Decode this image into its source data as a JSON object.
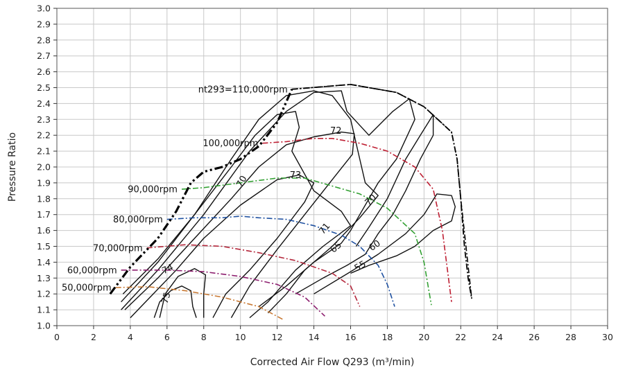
{
  "chart_data": {
    "type": "line",
    "title": "",
    "xlabel": "Corrected Air Flow Q293  (m³/min)",
    "ylabel": "Pressure Ratio",
    "xlim": [
      0,
      30
    ],
    "ylim": [
      1.0,
      3.0
    ],
    "x_ticks": [
      0,
      2,
      4,
      6,
      8,
      10,
      12,
      14,
      16,
      18,
      20,
      22,
      24,
      26,
      28,
      30
    ],
    "x_tick_labels": [
      "0",
      "2",
      "4",
      "6",
      "8",
      "10",
      "12",
      "14",
      "16",
      "18",
      "20",
      "22",
      "24",
      "26",
      "28",
      "30"
    ],
    "y_ticks": [
      1.0,
      1.1,
      1.2,
      1.3,
      1.4,
      1.5,
      1.6,
      1.7,
      1.8,
      1.9,
      2.0,
      2.1,
      2.2,
      2.3,
      2.4,
      2.5,
      2.6,
      2.7,
      2.8,
      2.9,
      3.0
    ],
    "y_tick_labels": [
      "1.0",
      "1.1",
      "1.2",
      "1.3",
      "1.4",
      "1.5",
      "1.6",
      "1.7",
      "1.8",
      "1.9",
      "2.0",
      "2.1",
      "2.2",
      "2.3",
      "2.4",
      "2.5",
      "2.6",
      "2.7",
      "2.8",
      "2.9",
      "3.0"
    ],
    "grid": true,
    "surge_line": {
      "color": "#000000",
      "points": [
        [
          2.9,
          1.2
        ],
        [
          4.0,
          1.37
        ],
        [
          5.5,
          1.55
        ],
        [
          6.5,
          1.72
        ],
        [
          7.3,
          1.9
        ],
        [
          8.0,
          1.97
        ],
        [
          9.0,
          2.0
        ],
        [
          10.0,
          2.05
        ],
        [
          11.0,
          2.13
        ],
        [
          12.0,
          2.28
        ],
        [
          12.8,
          2.49
        ]
      ]
    },
    "choke_line": {
      "color": "#000000",
      "points": [
        [
          12.8,
          2.49
        ],
        [
          16.0,
          2.52
        ],
        [
          17.0,
          2.5
        ],
        [
          18.5,
          2.47
        ],
        [
          20.0,
          2.38
        ],
        [
          21.5,
          2.22
        ],
        [
          21.8,
          2.05
        ],
        [
          22.0,
          1.8
        ],
        [
          22.2,
          1.5
        ],
        [
          22.4,
          1.3
        ],
        [
          22.6,
          1.17
        ]
      ]
    },
    "speed_lines": [
      {
        "name": "50,000rpm",
        "color": "#c87832",
        "points": [
          [
            3.2,
            1.24
          ],
          [
            5.0,
            1.245
          ],
          [
            7.0,
            1.22
          ],
          [
            9.0,
            1.18
          ],
          [
            11.0,
            1.12
          ],
          [
            12.3,
            1.04
          ]
        ]
      },
      {
        "name": "60,000rpm",
        "color": "#8c1e6e",
        "points": [
          [
            3.5,
            1.35
          ],
          [
            6.0,
            1.35
          ],
          [
            8.0,
            1.34
          ],
          [
            10.0,
            1.31
          ],
          [
            12.0,
            1.26
          ],
          [
            13.5,
            1.18
          ],
          [
            14.6,
            1.06
          ]
        ]
      },
      {
        "name": "70,000rpm",
        "color": "#b4283c",
        "points": [
          [
            4.9,
            1.49
          ],
          [
            7.0,
            1.51
          ],
          [
            9.0,
            1.5
          ],
          [
            11.0,
            1.46
          ],
          [
            13.0,
            1.41
          ],
          [
            15.0,
            1.33
          ],
          [
            16.0,
            1.25
          ],
          [
            16.5,
            1.12
          ]
        ]
      },
      {
        "name": "80,000rpm",
        "color": "#1e50a0",
        "points": [
          [
            6.0,
            1.67
          ],
          [
            7.5,
            1.68
          ],
          [
            9.0,
            1.68
          ],
          [
            10.0,
            1.69
          ],
          [
            11.0,
            1.68
          ],
          [
            12.5,
            1.67
          ],
          [
            14.0,
            1.63
          ],
          [
            15.5,
            1.57
          ],
          [
            16.5,
            1.5
          ],
          [
            17.5,
            1.38
          ],
          [
            18.0,
            1.26
          ],
          [
            18.4,
            1.12
          ]
        ]
      },
      {
        "name": "90,000rpm",
        "color": "#32a032",
        "points": [
          [
            6.8,
            1.86
          ],
          [
            8.0,
            1.87
          ],
          [
            10.0,
            1.9
          ],
          [
            12.0,
            1.93
          ],
          [
            13.5,
            1.93
          ],
          [
            15.0,
            1.88
          ],
          [
            16.5,
            1.83
          ],
          [
            18.0,
            1.74
          ],
          [
            19.5,
            1.58
          ],
          [
            20.0,
            1.4
          ],
          [
            20.4,
            1.13
          ]
        ]
      },
      {
        "name": "100,000rpm",
        "color": "#be1e32",
        "points": [
          [
            11.2,
            2.15
          ],
          [
            12.5,
            2.16
          ],
          [
            14.0,
            2.18
          ],
          [
            15.0,
            2.18
          ],
          [
            16.5,
            2.15
          ],
          [
            18.0,
            2.1
          ],
          [
            19.5,
            2.0
          ],
          [
            20.5,
            1.86
          ],
          [
            21.0,
            1.6
          ],
          [
            21.5,
            1.15
          ]
        ]
      },
      {
        "name": "nt293=110,000rpm",
        "color": "#000000",
        "points": [
          [
            12.8,
            2.49
          ],
          [
            16.0,
            2.52
          ],
          [
            18.5,
            2.47
          ],
          [
            20.0,
            2.38
          ],
          [
            21.5,
            2.22
          ],
          [
            21.8,
            2.05
          ],
          [
            22.0,
            1.8
          ],
          [
            22.6,
            1.17
          ]
        ]
      }
    ],
    "efficiency_contours": [
      {
        "label": "75",
        "points": [
          [
            5.3,
            1.05
          ],
          [
            5.6,
            1.15
          ],
          [
            6.2,
            1.22
          ],
          [
            6.8,
            1.25
          ],
          [
            7.3,
            1.22
          ],
          [
            7.4,
            1.12
          ],
          [
            7.6,
            1.05
          ]
        ]
      },
      {
        "label": "74",
        "points": [
          [
            5.6,
            1.05
          ],
          [
            5.9,
            1.2
          ],
          [
            6.6,
            1.31
          ],
          [
            7.5,
            1.36
          ],
          [
            8.1,
            1.32
          ],
          [
            8.0,
            1.2
          ],
          [
            8.0,
            1.05
          ]
        ]
      },
      {
        "label": "73",
        "points": [
          [
            4.0,
            1.05
          ],
          [
            5.0,
            1.17
          ],
          [
            6.5,
            1.35
          ],
          [
            8.0,
            1.55
          ],
          [
            10.0,
            1.76
          ],
          [
            12.0,
            1.92
          ],
          [
            13.2,
            1.95
          ],
          [
            14.0,
            1.9
          ],
          [
            13.5,
            1.78
          ],
          [
            12.0,
            1.55
          ],
          [
            10.5,
            1.35
          ],
          [
            9.2,
            1.2
          ],
          [
            8.5,
            1.05
          ]
        ]
      },
      {
        "label": "72",
        "points": [
          [
            3.7,
            1.1
          ],
          [
            5.5,
            1.3
          ],
          [
            7.5,
            1.55
          ],
          [
            9.5,
            1.8
          ],
          [
            11.0,
            2.0
          ],
          [
            12.5,
            2.14
          ],
          [
            14.0,
            2.19
          ],
          [
            15.5,
            2.22
          ],
          [
            16.2,
            2.21
          ],
          [
            16.1,
            2.08
          ],
          [
            15.0,
            1.92
          ],
          [
            13.5,
            1.7
          ],
          [
            12.0,
            1.48
          ],
          [
            10.5,
            1.25
          ],
          [
            9.5,
            1.05
          ]
        ]
      },
      {
        "label": "71",
        "points": [
          [
            3.6,
            1.2
          ],
          [
            5.5,
            1.42
          ],
          [
            7.5,
            1.7
          ],
          [
            9.5,
            2.0
          ],
          [
            10.8,
            2.2
          ],
          [
            12.0,
            2.33
          ],
          [
            13.0,
            2.35
          ],
          [
            13.2,
            2.25
          ],
          [
            12.8,
            2.1
          ],
          [
            14.0,
            1.85
          ],
          [
            15.5,
            1.72
          ],
          [
            16.0,
            1.63
          ],
          [
            14.5,
            1.5
          ],
          [
            13.0,
            1.35
          ],
          [
            11.5,
            1.15
          ],
          [
            10.5,
            1.05
          ]
        ]
      },
      {
        "label": "70",
        "points": [
          [
            3.5,
            1.15
          ],
          [
            5.5,
            1.4
          ],
          [
            7.5,
            1.7
          ],
          [
            9.5,
            2.05
          ],
          [
            11.0,
            2.3
          ],
          [
            12.5,
            2.45
          ],
          [
            14.0,
            2.48
          ],
          [
            15.0,
            2.45
          ],
          [
            16.0,
            2.3
          ],
          [
            16.5,
            2.05
          ],
          [
            16.8,
            1.9
          ],
          [
            17.5,
            1.82
          ],
          [
            16.5,
            1.68
          ],
          [
            15.0,
            1.5
          ],
          [
            13.5,
            1.35
          ],
          [
            12.5,
            1.2
          ],
          [
            11.5,
            1.08
          ]
        ]
      },
      {
        "label": "65",
        "points": [
          [
            3.5,
            1.1
          ],
          [
            5.5,
            1.35
          ],
          [
            8.0,
            1.7
          ],
          [
            10.5,
            2.1
          ],
          [
            12.5,
            2.35
          ],
          [
            14.0,
            2.47
          ],
          [
            15.5,
            2.48
          ],
          [
            15.8,
            2.35
          ],
          [
            17.0,
            2.2
          ],
          [
            18.3,
            2.35
          ],
          [
            19.2,
            2.43
          ],
          [
            19.5,
            2.3
          ],
          [
            18.5,
            2.05
          ],
          [
            17.5,
            1.9
          ],
          [
            16.0,
            1.6
          ],
          [
            15.5,
            1.52
          ],
          [
            14.0,
            1.4
          ],
          [
            12.5,
            1.25
          ],
          [
            11.0,
            1.12
          ]
        ]
      },
      {
        "label": "60",
        "points": [
          [
            16.3,
            1.5
          ],
          [
            17.0,
            1.62
          ],
          [
            18.0,
            1.8
          ],
          [
            19.0,
            2.05
          ],
          [
            19.8,
            2.2
          ],
          [
            20.5,
            2.33
          ],
          [
            20.5,
            2.2
          ],
          [
            19.8,
            2.05
          ],
          [
            19.0,
            1.85
          ],
          [
            18.3,
            1.7
          ],
          [
            17.5,
            1.58
          ],
          [
            16.8,
            1.45
          ],
          [
            15.8,
            1.38
          ],
          [
            14.5,
            1.3
          ],
          [
            13.0,
            1.2
          ]
        ]
      },
      {
        "label": "55",
        "points": [
          [
            14.0,
            1.2
          ],
          [
            16.0,
            1.34
          ],
          [
            17.5,
            1.45
          ],
          [
            19.0,
            1.58
          ],
          [
            20.0,
            1.7
          ],
          [
            20.7,
            1.83
          ],
          [
            21.5,
            1.82
          ],
          [
            21.7,
            1.75
          ],
          [
            21.5,
            1.66
          ],
          [
            20.5,
            1.6
          ],
          [
            19.5,
            1.5
          ],
          [
            18.5,
            1.44
          ],
          [
            17.0,
            1.38
          ],
          [
            16.0,
            1.33
          ]
        ]
      }
    ]
  }
}
